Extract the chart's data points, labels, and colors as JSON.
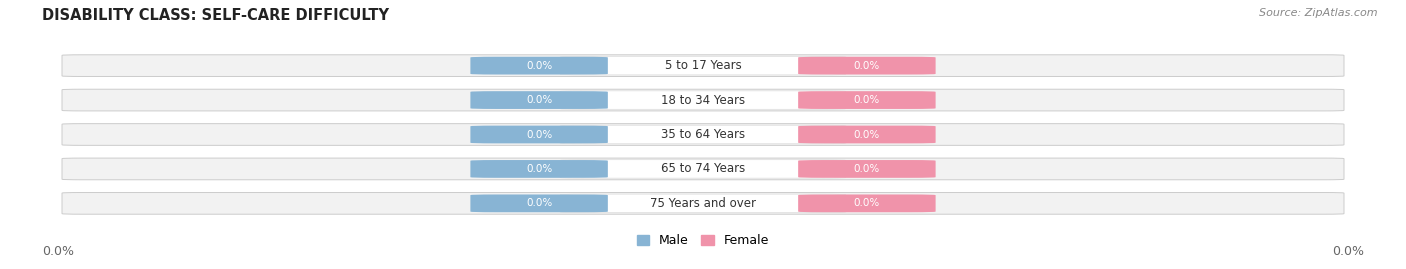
{
  "title": "DISABILITY CLASS: SELF-CARE DIFFICULTY",
  "source": "Source: ZipAtlas.com",
  "categories": [
    "5 to 17 Years",
    "18 to 34 Years",
    "35 to 64 Years",
    "65 to 74 Years",
    "75 Years and over"
  ],
  "male_values": [
    0.0,
    0.0,
    0.0,
    0.0,
    0.0
  ],
  "female_values": [
    0.0,
    0.0,
    0.0,
    0.0,
    0.0
  ],
  "male_color": "#88b4d4",
  "female_color": "#f093aa",
  "bar_bg_color": "#f0f0f0",
  "bar_border_color": "#d0d0d0",
  "label_bg_color": "#ffffff",
  "title_fontsize": 10.5,
  "cat_fontsize": 8.5,
  "val_fontsize": 7.5,
  "source_fontsize": 8,
  "fig_width": 14.06,
  "fig_height": 2.69,
  "bg_color": "#ffffff",
  "axis_label_left": "0.0%",
  "axis_label_right": "0.0%"
}
